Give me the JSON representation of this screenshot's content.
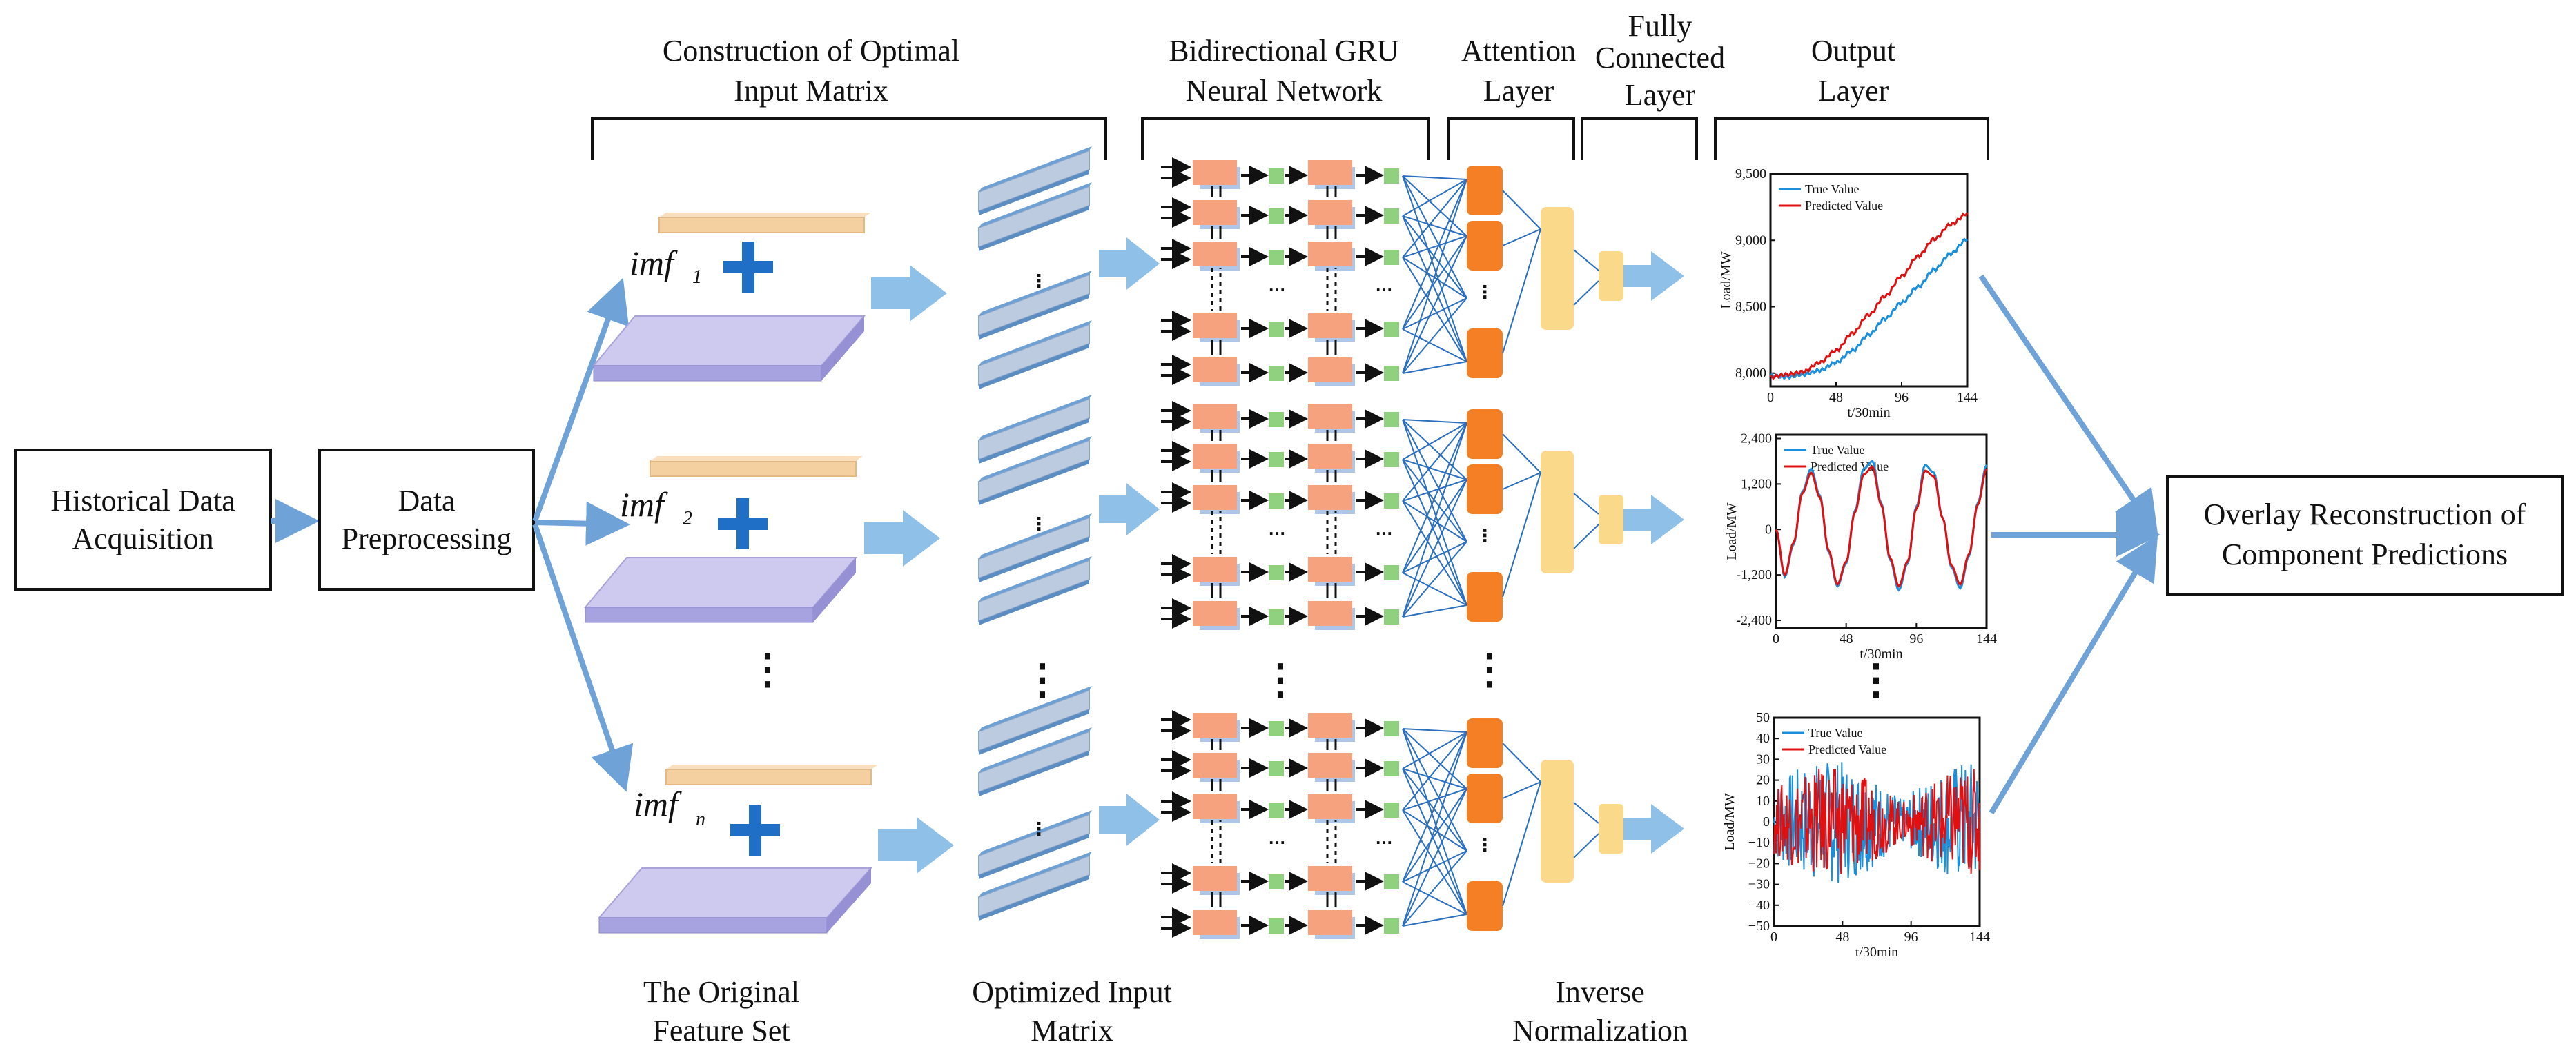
{
  "stages": {
    "historical": "Historical Data Acquisition",
    "historical_lines": [
      "Historical Data",
      "Acquisition"
    ],
    "preprocessing_lines": [
      "Data",
      "Preprocessing"
    ],
    "input_matrix_lines": [
      "Construction of Optimal",
      "Input Matrix"
    ],
    "gru_lines": [
      "Bidirectional GRU",
      "Neural Network"
    ],
    "attention_lines": [
      "Attention",
      "Layer"
    ],
    "fc_lines": [
      "Fully",
      "Connected",
      "Layer"
    ],
    "output_lines": [
      "Output",
      "Layer"
    ],
    "overlay_lines": [
      "Overlay Reconstruction of",
      "Component Predictions"
    ]
  },
  "bottom_labels": {
    "original_lines": [
      "The Original",
      "Feature Set"
    ],
    "optimized_lines": [
      "Optimized Input",
      "Matrix"
    ],
    "inverse_lines": [
      "Inverse",
      "Normalization"
    ]
  },
  "components": [
    {
      "name": "imf",
      "sub": "1"
    },
    {
      "name": "imf",
      "sub": "2"
    },
    {
      "name": "imf",
      "sub": "n"
    }
  ],
  "ellipsis": "⋮",
  "colors": {
    "arrow": "#6fa3d8",
    "gru_cell": "#f7a27e",
    "gru_shadow": "#aec6e8",
    "gate": "#8fd17f",
    "attention": "#f57f25",
    "fc": "#fbd98a",
    "feature_bar": "#f4cfa0",
    "feature_slab": "#c7c3ec",
    "matrix": "#bccbe0",
    "true_line": "#1a8fdc",
    "pred_line": "#e01010"
  },
  "chart_data": [
    {
      "type": "line",
      "title": "",
      "xlabel": "t/30min",
      "ylabel": "Load/MW",
      "xlim": [
        0,
        144
      ],
      "ylim": [
        7900,
        9500
      ],
      "xticks": [
        "0",
        "48",
        "96",
        "144"
      ],
      "yticks": [
        "8,000",
        "8,500",
        "9,000",
        "9,500"
      ],
      "legend": [
        "True Value",
        "Predicted Value"
      ],
      "legend_position": "top-left",
      "x": [
        0,
        12,
        24,
        36,
        48,
        60,
        72,
        84,
        96,
        108,
        120,
        132,
        144
      ],
      "series": [
        {
          "name": "True Value",
          "values": [
            7980,
            7970,
            7990,
            8020,
            8080,
            8170,
            8290,
            8410,
            8530,
            8650,
            8780,
            8900,
            9010
          ]
        },
        {
          "name": "Predicted Value",
          "values": [
            7970,
            7990,
            8010,
            8080,
            8170,
            8300,
            8440,
            8580,
            8730,
            8880,
            9010,
            9120,
            9200
          ]
        }
      ]
    },
    {
      "type": "line",
      "title": "",
      "xlabel": "t/30min",
      "ylabel": "Load/MW",
      "xlim": [
        0,
        144
      ],
      "ylim": [
        -2600,
        2500
      ],
      "xticks": [
        "0",
        "48",
        "96",
        "144"
      ],
      "yticks": [
        "-2,400",
        "-1,200",
        "0",
        "1,200",
        "2,400"
      ],
      "legend": [
        "True Value",
        "Predicted Value"
      ],
      "legend_position": "top-left",
      "x": [
        0,
        6,
        12,
        18,
        24,
        30,
        36,
        42,
        48,
        54,
        60,
        66,
        72,
        78,
        84,
        90,
        96,
        102,
        108,
        114,
        120,
        126,
        132,
        138,
        144
      ],
      "series": [
        {
          "name": "True Value",
          "values": [
            0,
            -1250,
            -400,
            1000,
            1600,
            900,
            -600,
            -1500,
            -900,
            500,
            1600,
            1800,
            700,
            -800,
            -1600,
            -900,
            600,
            1700,
            1500,
            300,
            -1000,
            -1550,
            -700,
            700,
            1700
          ]
        },
        {
          "name": "Predicted Value",
          "values": [
            0,
            -1200,
            -350,
            950,
            1500,
            850,
            -550,
            -1450,
            -850,
            450,
            1450,
            1650,
            650,
            -750,
            -1500,
            -850,
            550,
            1550,
            1400,
            300,
            -950,
            -1450,
            -650,
            650,
            1600
          ]
        }
      ]
    },
    {
      "type": "line",
      "title": "",
      "xlabel": "t/30min",
      "ylabel": "Load/MW",
      "xlim": [
        0,
        144
      ],
      "ylim": [
        -50,
        50
      ],
      "xticks": [
        "0",
        "48",
        "96",
        "144"
      ],
      "yticks": [
        "50",
        "40",
        "30",
        "20",
        "10",
        "0",
        "−10",
        "−20",
        "−30",
        "−40",
        "−50"
      ],
      "legend": [
        "True Value",
        "Predicted Value"
      ],
      "legend_position": "top-left",
      "noise_amplitude": {
        "True Value": 30,
        "Predicted Value": 26
      },
      "series": [
        {
          "name": "True Value",
          "values": []
        },
        {
          "name": "Predicted Value",
          "values": []
        }
      ]
    }
  ]
}
